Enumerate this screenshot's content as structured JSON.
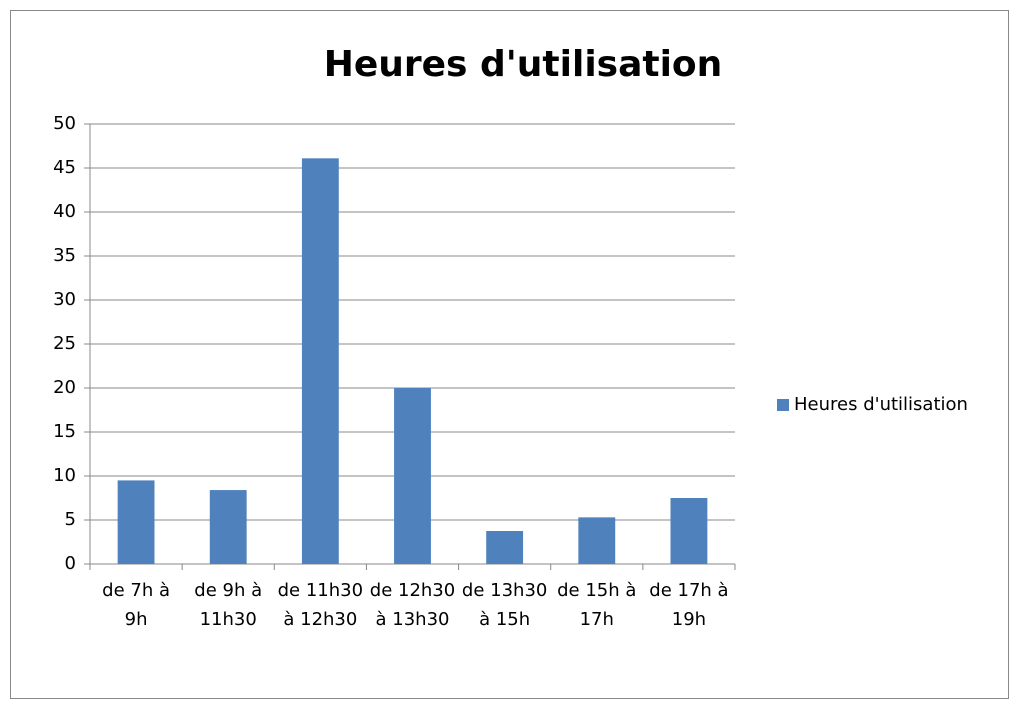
{
  "chart_data": {
    "type": "bar",
    "title": "Heures d'utilisation",
    "categories": [
      "de 7h à 9h",
      "de 9h à 11h30",
      "de 11h30 à 12h30",
      "de 12h30 à 13h30",
      "de 13h30 à 15h",
      "de 15h à 17h",
      "de 17h à 19h"
    ],
    "series": [
      {
        "name": "Heures d'utilisation",
        "color": "#4f81bd",
        "values": [
          9.5,
          8.4,
          46.1,
          20,
          3.75,
          5.3,
          7.5
        ]
      }
    ],
    "ylim": [
      0,
      50
    ],
    "yticks": [
      0,
      5,
      10,
      15,
      20,
      25,
      30,
      35,
      40,
      45,
      50
    ],
    "grid": true,
    "legend": "right"
  }
}
